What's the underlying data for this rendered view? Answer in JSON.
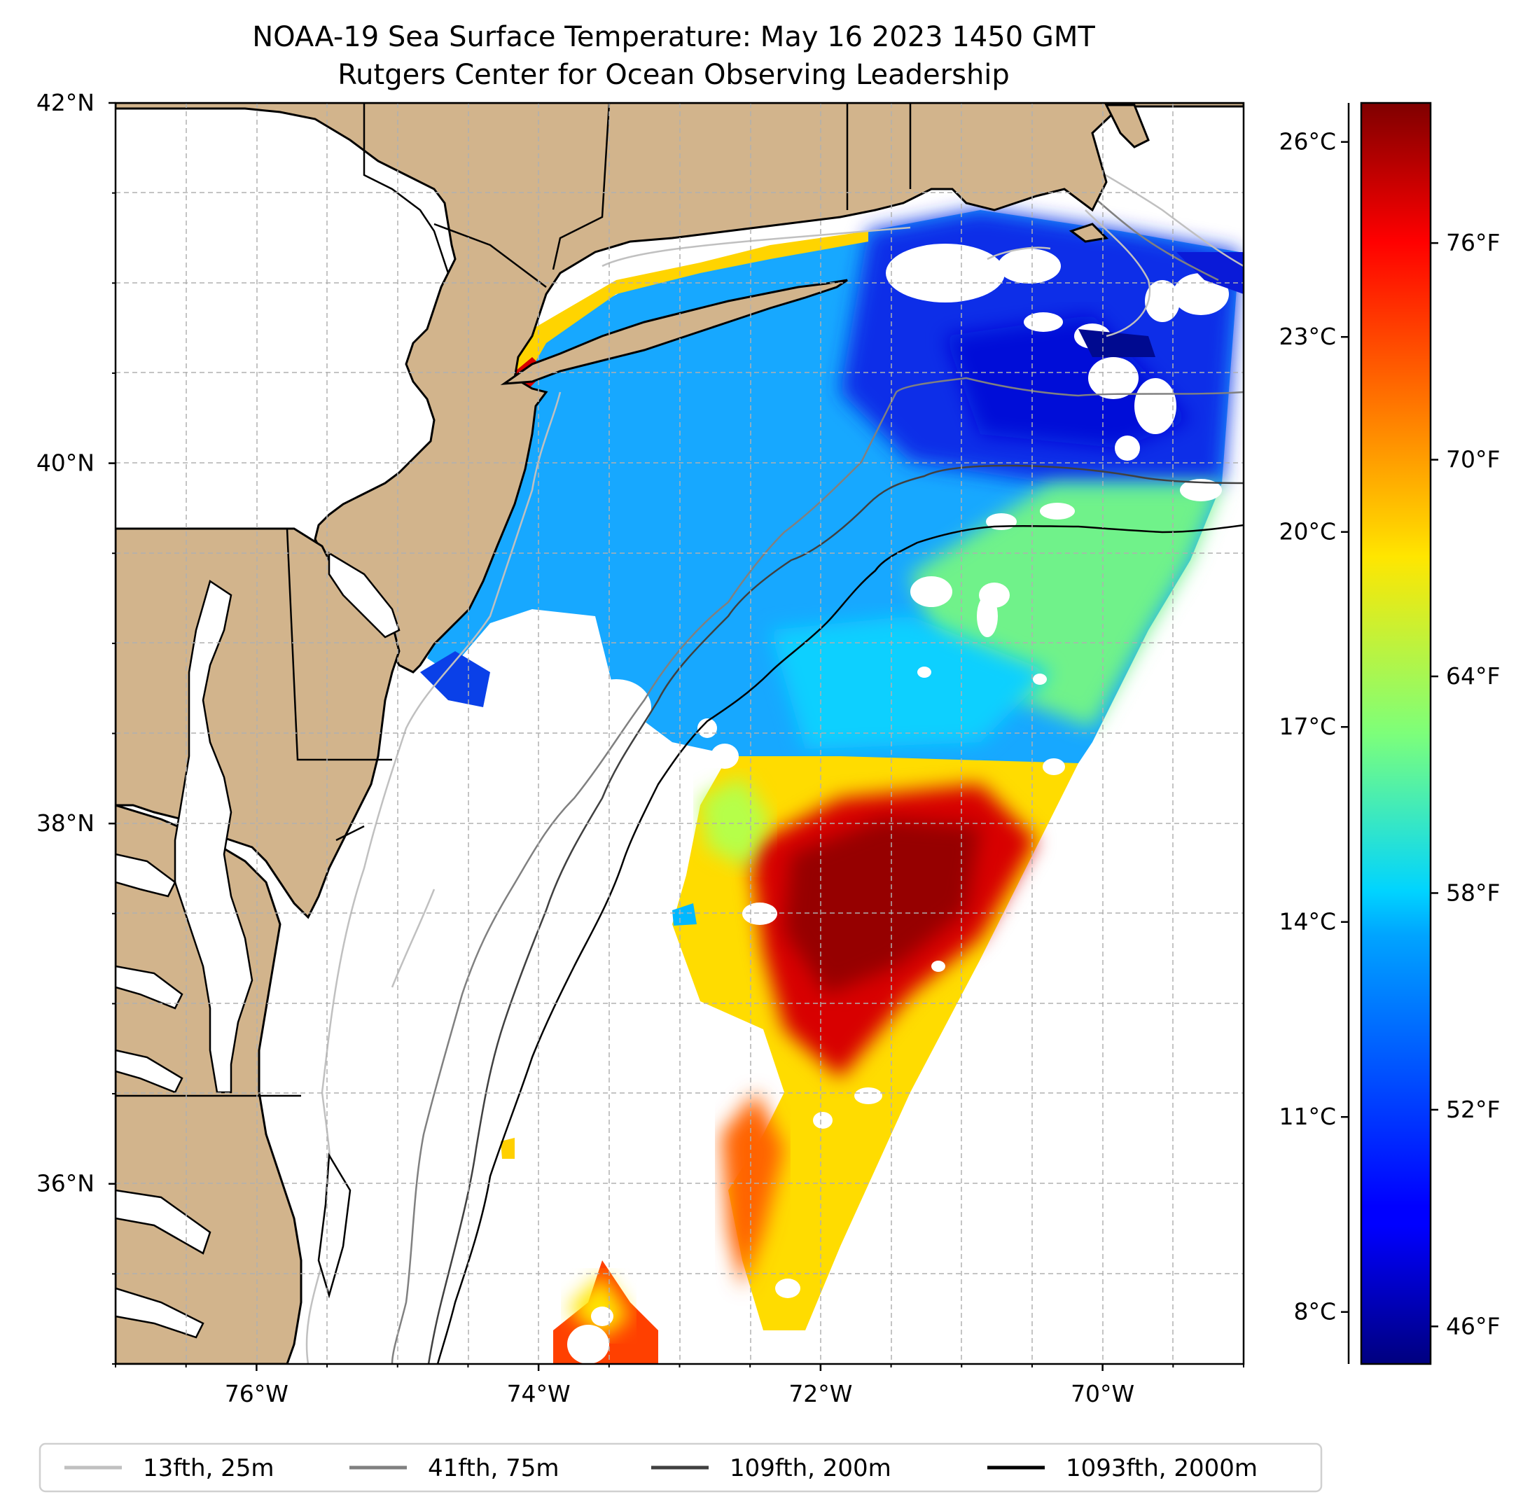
{
  "title": {
    "line1": "NOAA-19 Sea Surface Temperature: May 16 2023 1450 GMT",
    "line2": "Rutgers Center for Ocean Observing Leadership"
  },
  "map": {
    "lon_range": [
      -77,
      -69
    ],
    "lat_range": [
      35,
      42
    ],
    "lon_ticks": [
      {
        "value": -76,
        "label": "76°W"
      },
      {
        "value": -74,
        "label": "74°W"
      },
      {
        "value": -72,
        "label": "72°W"
      },
      {
        "value": -70,
        "label": "70°W"
      }
    ],
    "lat_ticks": [
      {
        "value": 42,
        "label": "42°N"
      },
      {
        "value": 40,
        "label": "40°N"
      },
      {
        "value": 38,
        "label": "38°N"
      },
      {
        "value": 36,
        "label": "36°N"
      }
    ],
    "colors": {
      "land": "#d2b48c",
      "coast": "#000000",
      "grid": "#b0b0b0",
      "no_data": "#ffffff"
    }
  },
  "colorbar": {
    "colormap": "jet",
    "celsius_ticks": [
      {
        "value": 26,
        "label": "26°C"
      },
      {
        "value": 23,
        "label": "23°C"
      },
      {
        "value": 20,
        "label": "20°C"
      },
      {
        "value": 17,
        "label": "17°C"
      },
      {
        "value": 14,
        "label": "14°C"
      },
      {
        "value": 11,
        "label": "11°C"
      },
      {
        "value": 8,
        "label": "8°C"
      }
    ],
    "fahrenheit_ticks": [
      {
        "value": 76,
        "label": "76°F"
      },
      {
        "value": 70,
        "label": "70°F"
      },
      {
        "value": 64,
        "label": "64°F"
      },
      {
        "value": 58,
        "label": "58°F"
      },
      {
        "value": 52,
        "label": "52°F"
      },
      {
        "value": 46,
        "label": "46°F"
      }
    ],
    "range_c": [
      7.2,
      26.6
    ]
  },
  "legend": {
    "items": [
      {
        "label": "13fth, 25m",
        "color": "#c0c0c0"
      },
      {
        "label": "41fth, 75m",
        "color": "#808080"
      },
      {
        "label": "109fth, 200m",
        "color": "#404040"
      },
      {
        "label": "1093fth, 2000m",
        "color": "#000000"
      }
    ]
  }
}
